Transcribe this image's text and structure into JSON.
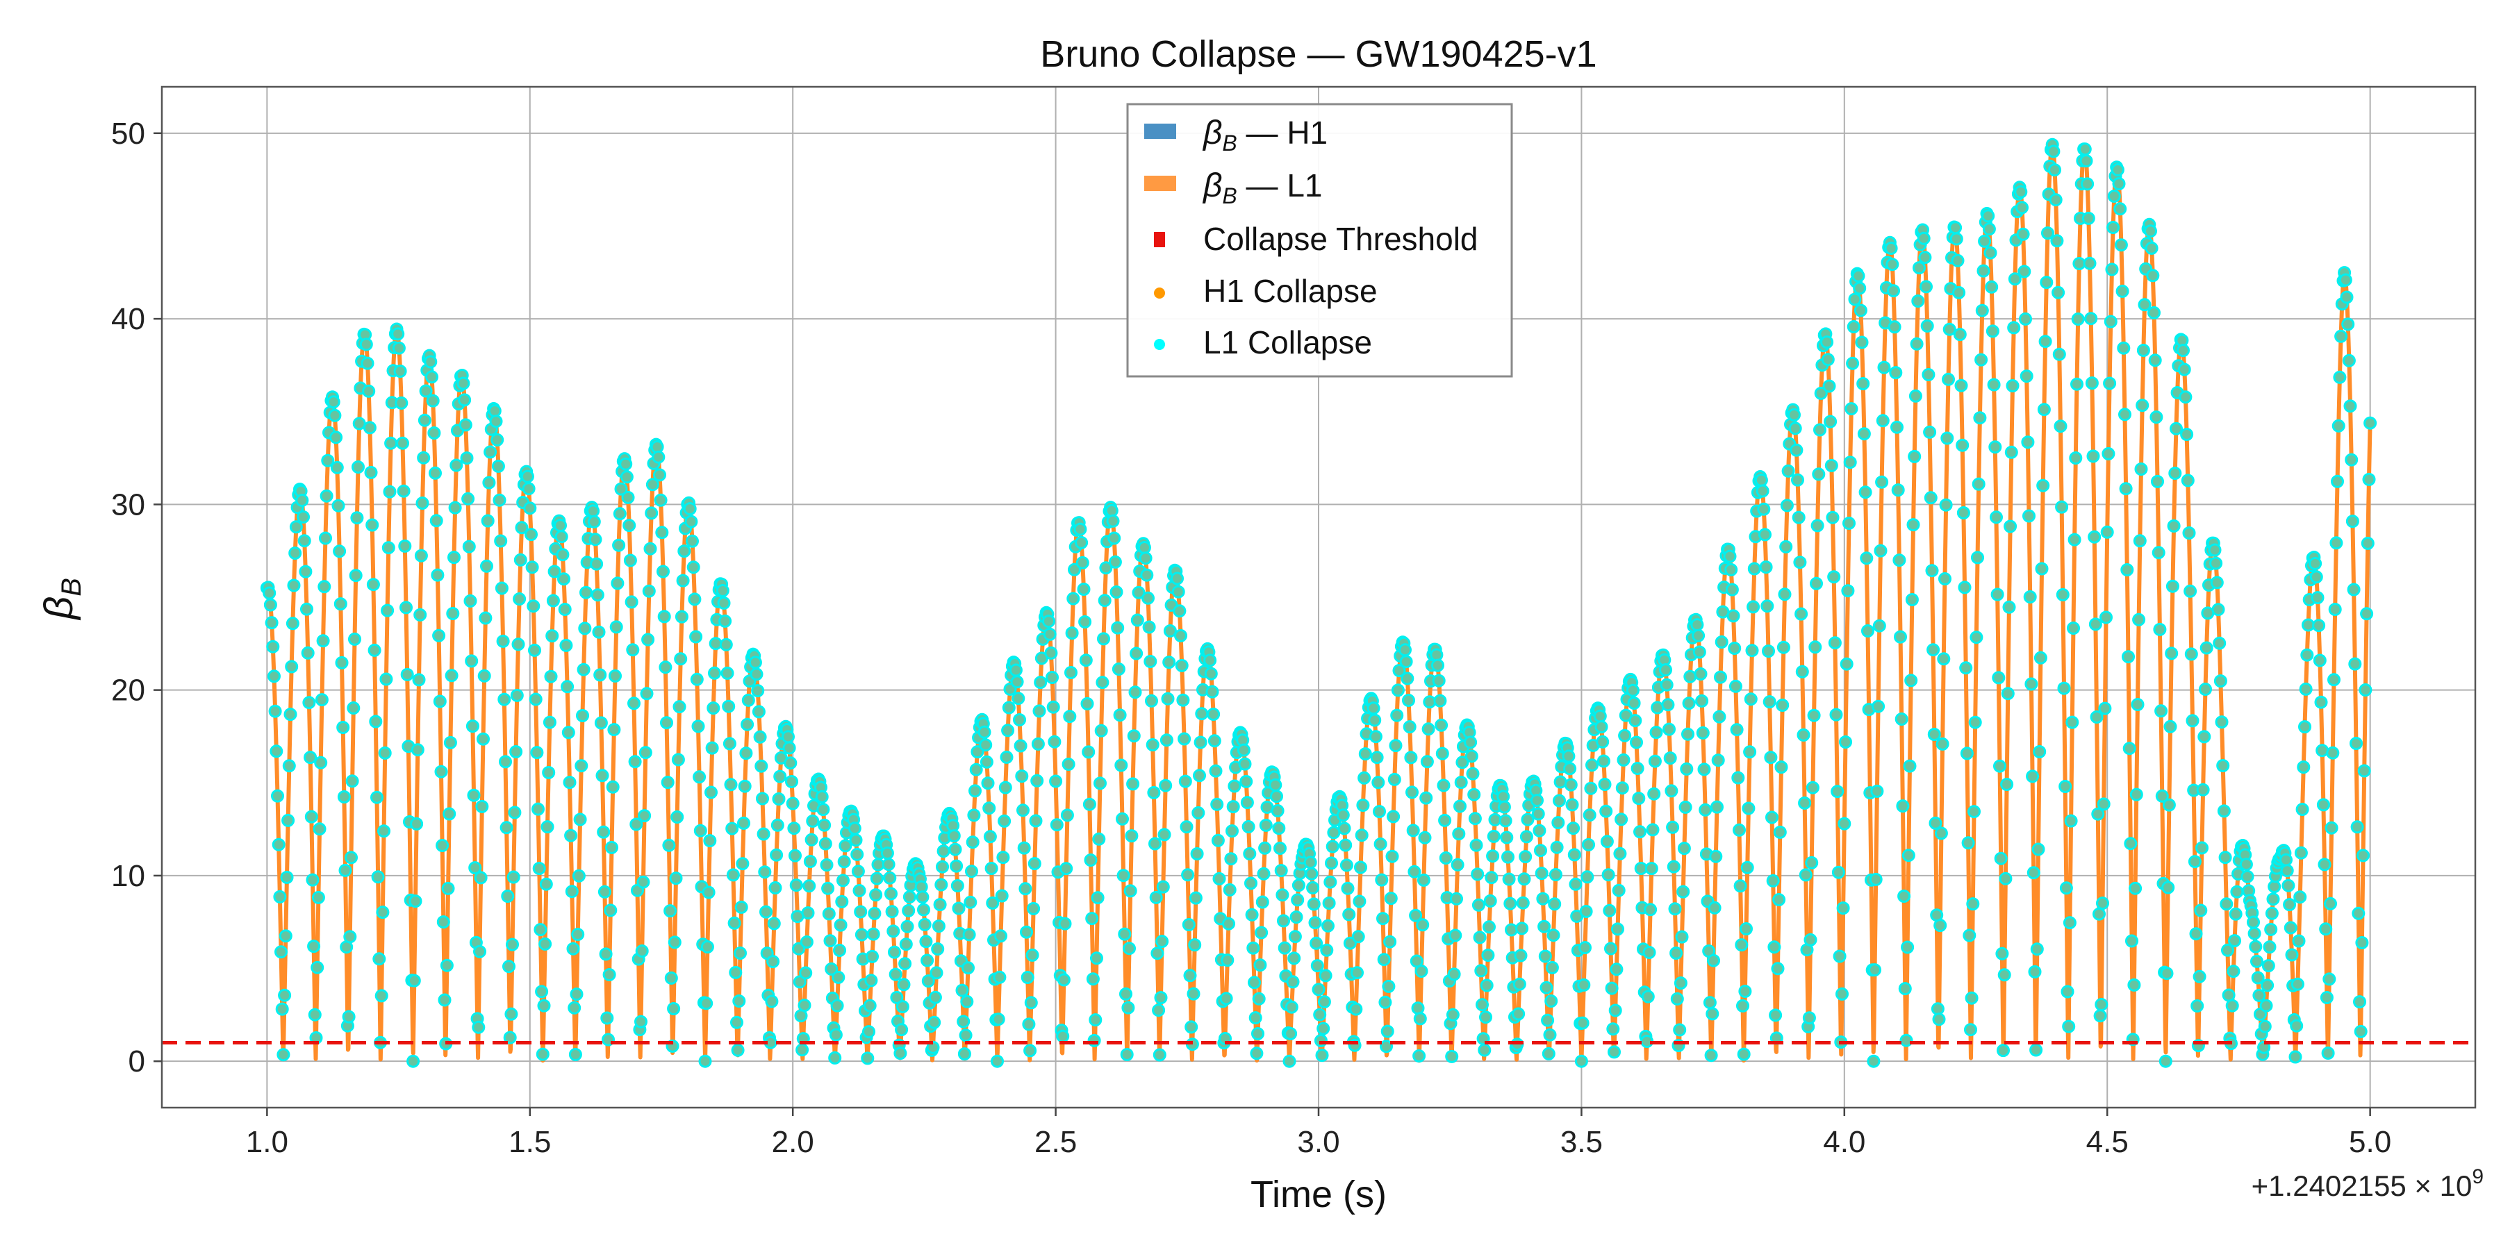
{
  "chart_data": {
    "type": "line",
    "title": "Bruno Collapse — GW190425-v1",
    "xlabel": "Time (s)",
    "ylabel_main": "β",
    "ylabel_sub": "B",
    "x_offset_label": "+1.2402155 × 10",
    "x_offset_exp": "9",
    "xlim": [
      0.8,
      5.2
    ],
    "ylim": [
      -2.5,
      52.5
    ],
    "x_ticks": [
      1.0,
      1.5,
      2.0,
      2.5,
      3.0,
      3.5,
      4.0,
      4.5,
      5.0
    ],
    "x_tick_labels": [
      "1.0",
      "1.5",
      "2.0",
      "2.5",
      "3.0",
      "3.5",
      "4.0",
      "4.5",
      "5.0"
    ],
    "y_ticks": [
      0,
      10,
      20,
      30,
      40,
      50
    ],
    "y_tick_labels": [
      "0",
      "10",
      "20",
      "30",
      "40",
      "50"
    ],
    "grid": true,
    "legend_position": "top-center",
    "threshold": 1.0,
    "oscillation_frequency_hz": 16.2,
    "envelope": {
      "x": [
        1.0,
        1.05,
        1.1,
        1.16,
        1.22,
        1.28,
        1.34,
        1.4,
        1.46,
        1.52,
        1.58,
        1.65,
        1.71,
        1.77,
        1.83,
        1.89,
        1.95,
        2.01,
        2.07,
        2.13,
        2.18,
        2.24,
        2.3,
        2.36,
        2.42,
        2.48,
        2.54,
        2.6,
        2.66,
        2.72,
        2.78,
        2.84,
        2.9,
        2.97,
        3.03,
        3.09,
        3.15,
        3.21,
        3.27,
        3.33,
        3.39,
        3.45,
        3.51,
        3.57,
        3.63,
        3.69,
        3.75,
        3.81,
        3.87,
        3.93,
        3.99,
        4.05,
        4.11,
        4.17,
        4.23,
        4.29,
        4.35,
        4.41,
        4.47,
        4.53,
        4.59,
        4.65,
        4.71,
        4.77,
        4.83,
        4.89,
        4.95,
        5.0
      ],
      "y": [
        25.5,
        29.8,
        34.0,
        38.5,
        40.2,
        38.5,
        37.5,
        36.5,
        34.0,
        30.0,
        28.5,
        31.0,
        34.0,
        32.5,
        28.0,
        24.0,
        20.5,
        16.5,
        14.5,
        13.0,
        12.0,
        10.5,
        13.5,
        18.5,
        21.5,
        24.0,
        29.0,
        30.0,
        28.0,
        27.0,
        23.0,
        18.0,
        16.5,
        11.5,
        13.5,
        19.0,
        22.5,
        23.0,
        19.0,
        15.0,
        14.5,
        16.5,
        18.5,
        20.0,
        21.5,
        22.5,
        25.5,
        30.0,
        33.0,
        37.0,
        41.0,
        43.5,
        44.5,
        45.0,
        45.0,
        46.0,
        47.5,
        50.0,
        49.0,
        48.0,
        44.5,
        38.0,
        26.5,
        9.0,
        11.0,
        27.0,
        42.5,
        42.5
      ]
    },
    "series": [
      {
        "name": "β — H1",
        "name_main": "β",
        "name_sub": "B",
        "name_rest": " — H1",
        "color": "#4a90c4",
        "marker": "square-patch"
      },
      {
        "name": "β — L1",
        "name_main": "β",
        "name_sub": "B",
        "name_rest": " — L1",
        "color": "#ff9a42",
        "marker": "square-patch"
      },
      {
        "name": "Collapse Threshold",
        "color": "#e8130e",
        "marker": "small-square"
      },
      {
        "name": "H1 Collapse",
        "color": "#ff9900",
        "marker": "dot"
      },
      {
        "name": "L1 Collapse",
        "color": "#00ffff",
        "marker": "dot"
      }
    ],
    "colors": {
      "h1_line": "#1f77b4",
      "l1_line": "#ff8c28",
      "h1_collapse": "#ff9900",
      "l1_collapse": "#00f0f0",
      "marker_fill": "#66c4a0",
      "threshold": "#e8130e"
    }
  }
}
